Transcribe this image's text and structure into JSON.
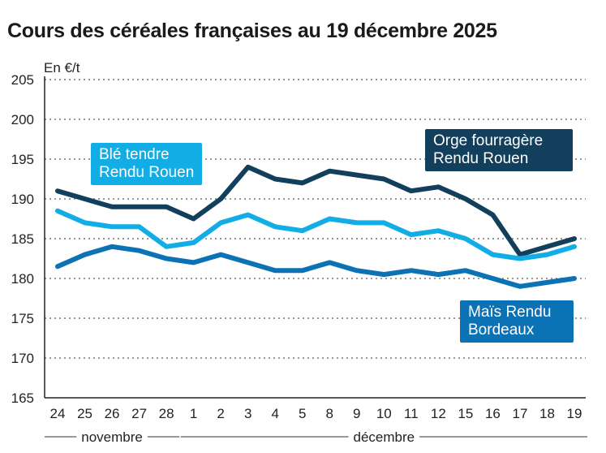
{
  "title": "Cours des céréales françaises au 19 décembre 2025",
  "chart_data": {
    "type": "line",
    "title": "Cours des céréales françaises au 19 décembre 2025",
    "ylabel": "En €/t",
    "ylim": [
      165,
      205
    ],
    "yticks": [
      165,
      170,
      175,
      180,
      185,
      190,
      195,
      200,
      205
    ],
    "grid": true,
    "categories": [
      "24",
      "25",
      "26",
      "27",
      "28",
      "1",
      "2",
      "3",
      "4",
      "5",
      "8",
      "9",
      "10",
      "11",
      "12",
      "15",
      "16",
      "17",
      "18",
      "19"
    ],
    "month_groups": [
      {
        "label": "novembre",
        "count": 5
      },
      {
        "label": "décembre",
        "count": 15
      }
    ],
    "series": [
      {
        "name": "Orge fourragère Rendu Rouen",
        "color": "#123f5c",
        "values": [
          191,
          190,
          189,
          189,
          189,
          187.5,
          190,
          194,
          192.5,
          192,
          193.5,
          193,
          192.5,
          191,
          191.5,
          190,
          188,
          183,
          184,
          185
        ]
      },
      {
        "name": "Blé tendre Rendu Rouen",
        "color": "#13ade6",
        "values": [
          188.5,
          187,
          186.5,
          186.5,
          184,
          184.5,
          187,
          188,
          186.5,
          186,
          187.5,
          187,
          187,
          185.5,
          186,
          185,
          183,
          182.5,
          183,
          184
        ]
      },
      {
        "name": "Maïs Rendu Bordeaux",
        "color": "#0b72b5",
        "values": [
          181.5,
          183,
          184,
          183.5,
          182.5,
          182,
          183,
          182,
          181,
          181,
          182,
          181,
          180.5,
          181,
          180.5,
          181,
          180,
          179,
          179.5,
          180
        ]
      }
    ],
    "labels": {
      "ble": [
        "Blé tendre",
        "Rendu Rouen"
      ],
      "orge": [
        "Orge fourragère",
        "Rendu Rouen"
      ],
      "mais": [
        "Maïs Rendu",
        "Bordeaux"
      ]
    }
  }
}
